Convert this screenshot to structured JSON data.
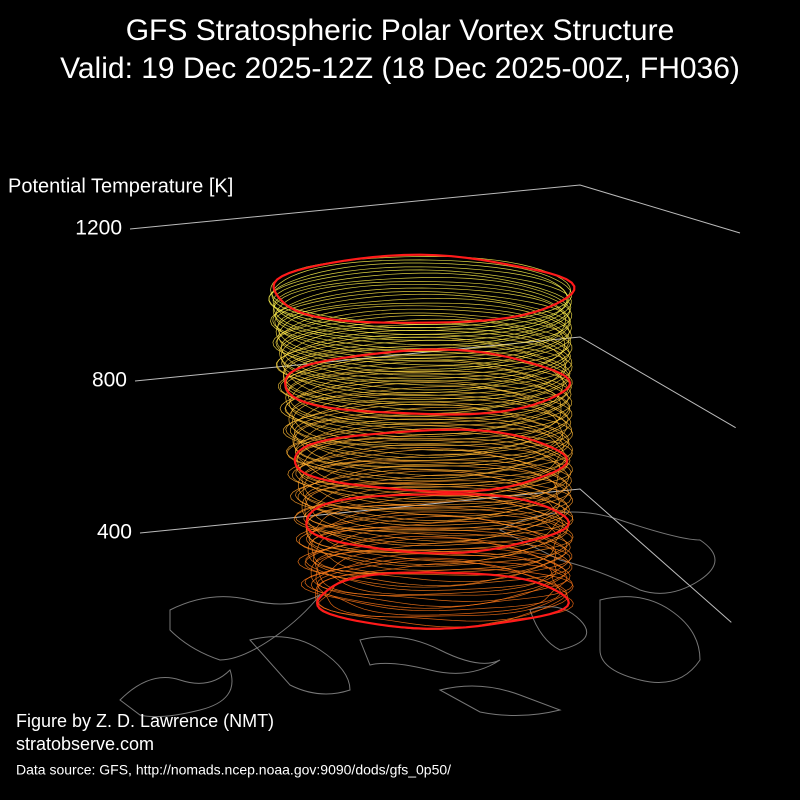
{
  "chart_data": {
    "type": "vortex3d",
    "title": "GFS Stratospheric Polar Vortex Structure",
    "subtitle": "Valid: 19 Dec 2025-12Z  (18 Dec 2025-00Z, FH036)",
    "z_label": "Potential Temperature [K]",
    "zlim": [
      0,
      1200
    ],
    "zticks": [
      400,
      800,
      1200
    ],
    "credit": "Figure by Z. D. Lawrence (NMT)",
    "website": "stratobserve.com",
    "source": "Data source: GFS, http://nomads.ncep.noaa.gov:9090/dods/gfs_0p50/"
  }
}
